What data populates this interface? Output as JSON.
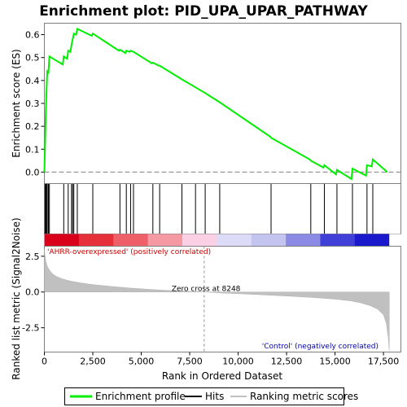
{
  "chart_data": {
    "type": "line",
    "title": "Enrichment plot: PID_UPA_UPAR_PATHWAY",
    "top_panel": {
      "ylabel": "Enrichment score (ES)",
      "ylim": [
        -0.05,
        0.65
      ],
      "yticks": [
        0.0,
        0.1,
        0.2,
        0.3,
        0.4,
        0.5,
        0.6
      ],
      "ytick_labels": [
        "0.0",
        "0.1",
        "0.2",
        "0.3",
        "0.4",
        "0.5",
        "0.6"
      ],
      "series": [
        {
          "name": "Enrichment profile",
          "color": "#00ee00",
          "x": [
            0,
            40,
            70,
            110,
            150,
            210,
            260,
            950,
            1000,
            1180,
            1230,
            1350,
            1400,
            1460,
            1520,
            1640,
            1700,
            2450,
            2500,
            3850,
            3900,
            4180,
            4230,
            4400,
            4450,
            4600,
            5550,
            5600,
            5900,
            5950,
            7100,
            7800,
            8300,
            9050,
            11650,
            11700,
            13700,
            13750,
            14400,
            14450,
            15050,
            15100,
            15850,
            15900,
            16600,
            16650,
            16900,
            16950,
            17700
          ],
          "y": [
            0.0,
            0.14,
            0.25,
            0.35,
            0.44,
            0.435,
            0.505,
            0.47,
            0.505,
            0.495,
            0.53,
            0.525,
            0.555,
            0.58,
            0.605,
            0.6,
            0.625,
            0.595,
            0.605,
            0.53,
            0.535,
            0.52,
            0.53,
            0.525,
            0.53,
            0.525,
            0.475,
            0.478,
            0.465,
            0.465,
            0.405,
            0.37,
            0.345,
            0.305,
            0.155,
            0.15,
            0.055,
            0.05,
            0.02,
            0.03,
            -0.01,
            0.01,
            -0.03,
            0.015,
            -0.015,
            0.03,
            0.025,
            0.055,
            0.0
          ]
        }
      ]
    },
    "hits": [
      40,
      70,
      110,
      150,
      210,
      260,
      1000,
      1230,
      1400,
      1460,
      1520,
      1700,
      2500,
      3900,
      4230,
      4450,
      4600,
      5600,
      5950,
      7100,
      7800,
      8300,
      9050,
      11700,
      13750,
      14450,
      15100,
      15900,
      16650,
      16950
    ],
    "heatmap_colors": [
      "#d9001c",
      "#e5303a",
      "#ee5f68",
      "#f59aa2",
      "#fcd0e4",
      "#dcdcf8",
      "#c4c4f0",
      "#8b8be6",
      "#4040d9",
      "#1a1acc"
    ],
    "bottom_panel": {
      "ylabel": "Ranked list metric (Signal2Noise)",
      "xlabel": "Rank in Ordered Dataset",
      "ylim": [
        -4.2,
        3.2
      ],
      "yticks": [
        -2.5,
        0.0,
        2.5
      ],
      "ytick_labels": [
        "-2.5",
        "0.0",
        "2.5"
      ],
      "metric": {
        "name": "Ranking metric scores",
        "x": [
          0,
          30,
          80,
          150,
          250,
          400,
          600,
          900,
          1300,
          1800,
          2500,
          3500,
          4500,
          5500,
          6500,
          7500,
          8248,
          9000,
          10000,
          11000,
          12000,
          13000,
          14000,
          15000,
          15800,
          16300,
          16800,
          17200,
          17500,
          17650,
          17750,
          17800
        ],
        "y": [
          3.0,
          2.55,
          2.15,
          1.8,
          1.55,
          1.3,
          1.1,
          0.93,
          0.78,
          0.65,
          0.52,
          0.38,
          0.27,
          0.18,
          0.1,
          0.04,
          0.0,
          -0.06,
          -0.12,
          -0.18,
          -0.25,
          -0.32,
          -0.4,
          -0.5,
          -0.62,
          -0.75,
          -0.95,
          -1.2,
          -1.6,
          -2.2,
          -3.2,
          -4.1
        ]
      },
      "zero_cross_label": "Zero cross at 8248",
      "zero_cross_x": 8248,
      "pos_label": "'AHRR-overexpressed' (positively correlated)",
      "neg_label": "'Control' (negatively correlated)"
    },
    "xlim": [
      0,
      18400
    ],
    "xticks": [
      0,
      2500,
      5000,
      7500,
      10000,
      12500,
      15000,
      17500
    ],
    "xtick_labels": [
      "0",
      "2,500",
      "5,000",
      "7,500",
      "10,000",
      "12,500",
      "15,000",
      "17,500"
    ],
    "legend": {
      "placement": "bottom",
      "items": [
        {
          "label": "Enrichment profile",
          "color": "#00ee00"
        },
        {
          "label": "Hits",
          "color": "#000000"
        },
        {
          "label": "Ranking metric scores",
          "color": "#c0c0c0"
        }
      ]
    }
  }
}
